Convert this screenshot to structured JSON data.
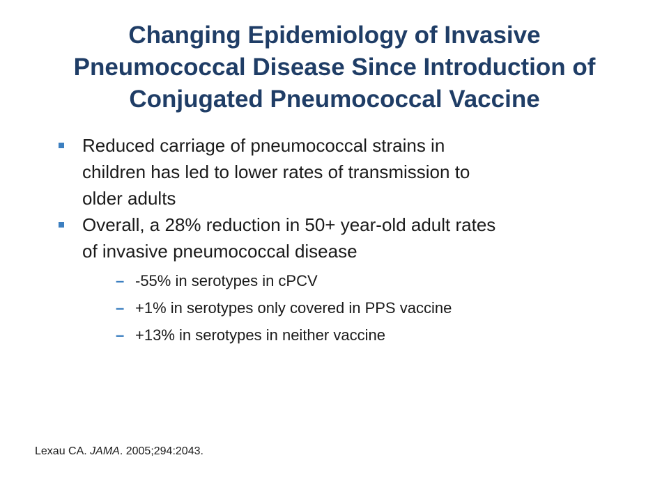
{
  "title": {
    "lines": [
      "Changing Epidemiology of Invasive",
      "Pneumococcal Disease Since Introduction of",
      "Conjugated Pneumococcal Vaccine"
    ]
  },
  "bullets": [
    {
      "lines": [
        "Reduced carriage of pneumococcal strains in",
        "children has led to lower rates of transmission to",
        "older adults"
      ]
    },
    {
      "lines": [
        "Overall, a 28% reduction in 50+ year-old adult rates",
        "of invasive pneumococcal disease"
      ],
      "sub_marker": "–",
      "sub_items": [
        "-55% in serotypes in cPCV",
        "+1% in serotypes only covered in PPS vaccine",
        "+13% in serotypes in neither vaccine"
      ]
    }
  ],
  "citation": {
    "author": "Lexau CA. ",
    "journal": "JAMA",
    "rest": ". 2005;294:2043."
  },
  "colors": {
    "title": "#1f3d66",
    "bullet_accent": "#3c7fc0",
    "text": "#1a1a1a",
    "background": "#ffffff"
  }
}
